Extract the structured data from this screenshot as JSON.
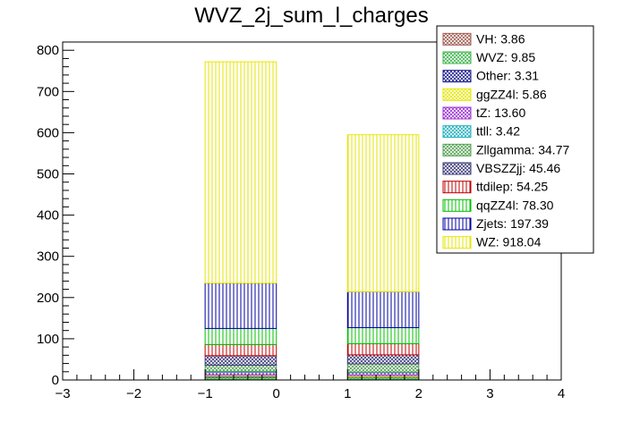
{
  "chart_data": {
    "type": "bar",
    "stacked": true,
    "title": "WVZ_2j_sum_l_charges",
    "xlabel": "",
    "ylabel": "",
    "xlim": [
      -3,
      4
    ],
    "ylim": [
      0,
      820
    ],
    "x_ticks": [
      -3,
      -2,
      -1,
      0,
      1,
      2,
      3,
      4
    ],
    "y_ticks": [
      0,
      100,
      200,
      300,
      400,
      500,
      600,
      700,
      800
    ],
    "bins": [
      {
        "lo": -1,
        "hi": 0
      },
      {
        "lo": 1,
        "hi": 2
      }
    ],
    "legend_position": "top-right",
    "series": [
      {
        "name": "VH: 3.86",
        "color": "#a05a50",
        "pattern": "crosshatch",
        "values": [
          2,
          2
        ]
      },
      {
        "name": "WVZ: 9.85",
        "color": "#3cb44b",
        "pattern": "crosshatch",
        "values": [
          5,
          5
        ]
      },
      {
        "name": "Other: 3.31",
        "color": "#1a1a8c",
        "pattern": "crosshatch",
        "values": [
          2,
          1
        ]
      },
      {
        "name": "ggZZ4l: 5.86",
        "color": "#e6e600",
        "pattern": "crosshatch",
        "values": [
          3,
          3
        ]
      },
      {
        "name": "tZ: 13.60",
        "color": "#9b30d0",
        "pattern": "crosshatch",
        "values": [
          7,
          7
        ]
      },
      {
        "name": "ttll: 3.42",
        "color": "#20b0c0",
        "pattern": "crosshatch",
        "values": [
          2,
          1
        ]
      },
      {
        "name": "Zllgamma: 34.77",
        "color": "#50a050",
        "pattern": "crosshatch",
        "values": [
          15,
          20
        ]
      },
      {
        "name": "VBSZZjj: 45.46",
        "color": "#3a3a7a",
        "pattern": "crosshatch",
        "values": [
          23,
          22
        ]
      },
      {
        "name": "ttdilep: 54.25",
        "color": "#c00000",
        "pattern": "vlines",
        "values": [
          27,
          27
        ]
      },
      {
        "name": "qqZZ4l: 78.30",
        "color": "#00c000",
        "pattern": "vlines",
        "values": [
          39,
          39
        ]
      },
      {
        "name": "Zjets: 197.39",
        "color": "#0000a0",
        "pattern": "vlines",
        "values": [
          110,
          87
        ]
      },
      {
        "name": "WZ: 918.04",
        "color": "#e6e600",
        "pattern": "vlines",
        "values": [
          537,
          381
        ]
      }
    ]
  }
}
